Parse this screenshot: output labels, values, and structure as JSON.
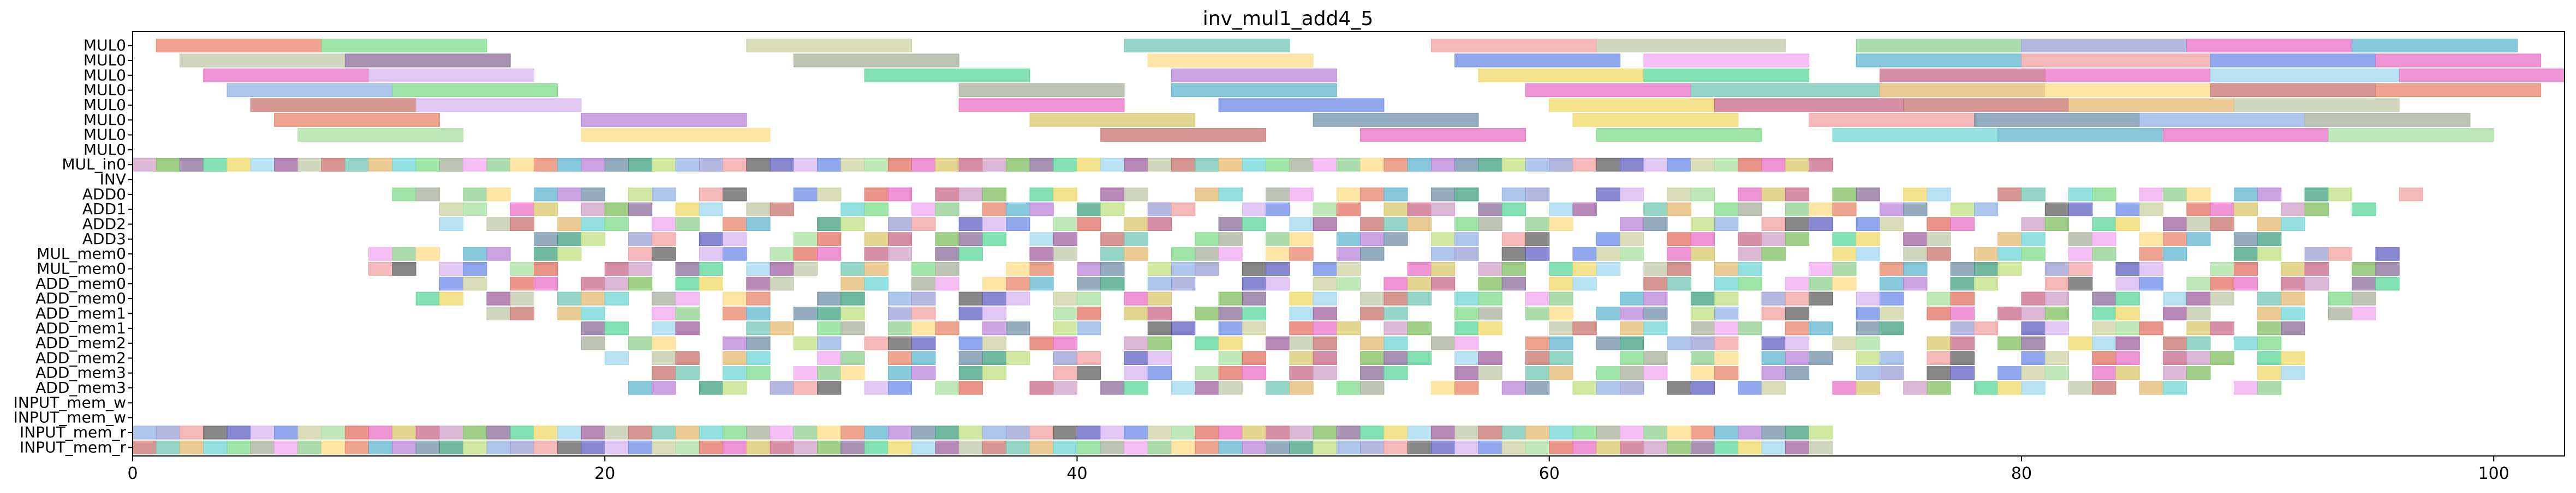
{
  "chart_data": {
    "type": "gantt",
    "title": "inv_mul1_add4_5",
    "xlabel": "",
    "ylabel": "",
    "xlim": [
      0,
      103
    ],
    "xticks": [
      0,
      20,
      40,
      60,
      80,
      100
    ],
    "rows": [
      "MUL0",
      "MUL0",
      "MUL0",
      "MUL0",
      "MUL0",
      "MUL0",
      "MUL0",
      "MUL0",
      "MUL_in0",
      "INV",
      "ADD0",
      "ADD1",
      "ADD2",
      "ADD3",
      "MUL_mem0",
      "MUL_mem0",
      "ADD_mem0",
      "ADD_mem0",
      "ADD_mem1",
      "ADD_mem1",
      "ADD_mem2",
      "ADD_mem2",
      "ADD_mem3",
      "ADD_mem3",
      "INPUT_mem_w",
      "INPUT_mem_w",
      "INPUT_mem_r",
      "INPUT_mem_r"
    ],
    "palette": [
      "#e8866a",
      "#7fdc8a",
      "#c2c9a8",
      "#8b6e9b",
      "#e86fc4",
      "#d7b5f0",
      "#94b3e6",
      "#5fb6d1",
      "#a7b09a",
      "#c8746e",
      "#5ad699",
      "#d8c86b",
      "#6c8be8",
      "#9b9fd6",
      "#b983d8",
      "#f0a8f0",
      "#72c7b2",
      "#f0d966",
      "#c96a8a",
      "#ccd2a0",
      "#f0a0a0",
      "#7090a8",
      "#90d090",
      "#e6b870",
      "#a0d8f0",
      "#d0a0c8",
      "#a8e0a0",
      "#606060",
      "#40a080",
      "#ffdd88",
      "#6fd6d6",
      "#a060a0",
      "#80c060",
      "#e07060",
      "#6060c0",
      "#c0e080"
    ],
    "bars": [
      {
        "row": 0,
        "s": 1,
        "e": 8,
        "c": 0
      },
      {
        "row": 0,
        "s": 8,
        "e": 15,
        "c": 1
      },
      {
        "row": 0,
        "s": 26,
        "e": 33,
        "c": 19
      },
      {
        "row": 0,
        "s": 42,
        "e": 49,
        "c": 16
      },
      {
        "row": 0,
        "s": 55,
        "e": 62,
        "c": 20
      },
      {
        "row": 0,
        "s": 62,
        "e": 70,
        "c": 2
      },
      {
        "row": 0,
        "s": 73,
        "e": 80,
        "c": 22
      },
      {
        "row": 0,
        "s": 80,
        "e": 87,
        "c": 13
      },
      {
        "row": 0,
        "s": 87,
        "e": 94,
        "c": 4
      },
      {
        "row": 0,
        "s": 94,
        "e": 101,
        "c": 7
      },
      {
        "row": 1,
        "s": 2,
        "e": 9,
        "c": 2
      },
      {
        "row": 1,
        "s": 9,
        "e": 16,
        "c": 3
      },
      {
        "row": 1,
        "s": 28,
        "e": 35,
        "c": 8
      },
      {
        "row": 1,
        "s": 43,
        "e": 50,
        "c": 29
      },
      {
        "row": 1,
        "s": 56,
        "e": 63,
        "c": 12
      },
      {
        "row": 1,
        "s": 64,
        "e": 71,
        "c": 15
      },
      {
        "row": 1,
        "s": 73,
        "e": 80,
        "c": 7
      },
      {
        "row": 1,
        "s": 80,
        "e": 88,
        "c": 20
      },
      {
        "row": 1,
        "s": 88,
        "e": 95,
        "c": 12
      },
      {
        "row": 1,
        "s": 95,
        "e": 102,
        "c": 4
      },
      {
        "row": 2,
        "s": 3,
        "e": 10,
        "c": 4
      },
      {
        "row": 2,
        "s": 10,
        "e": 17,
        "c": 5
      },
      {
        "row": 2,
        "s": 31,
        "e": 38,
        "c": 10
      },
      {
        "row": 2,
        "s": 44,
        "e": 51,
        "c": 14
      },
      {
        "row": 2,
        "s": 57,
        "e": 64,
        "c": 17
      },
      {
        "row": 2,
        "s": 64,
        "e": 71,
        "c": 10
      },
      {
        "row": 2,
        "s": 74,
        "e": 81,
        "c": 18
      },
      {
        "row": 2,
        "s": 81,
        "e": 88,
        "c": 4
      },
      {
        "row": 2,
        "s": 88,
        "e": 96,
        "c": 24
      },
      {
        "row": 2,
        "s": 96,
        "e": 103,
        "c": 4
      },
      {
        "row": 3,
        "s": 4,
        "e": 11,
        "c": 6
      },
      {
        "row": 3,
        "s": 11,
        "e": 18,
        "c": 1
      },
      {
        "row": 3,
        "s": 35,
        "e": 42,
        "c": 8
      },
      {
        "row": 3,
        "s": 44,
        "e": 51,
        "c": 7
      },
      {
        "row": 3,
        "s": 59,
        "e": 66,
        "c": 4
      },
      {
        "row": 3,
        "s": 66,
        "e": 74,
        "c": 16
      },
      {
        "row": 3,
        "s": 74,
        "e": 81,
        "c": 23
      },
      {
        "row": 3,
        "s": 81,
        "e": 88,
        "c": 29
      },
      {
        "row": 3,
        "s": 88,
        "e": 95,
        "c": 9
      },
      {
        "row": 3,
        "s": 95,
        "e": 102,
        "c": 0
      },
      {
        "row": 4,
        "s": 5,
        "e": 12,
        "c": 9
      },
      {
        "row": 4,
        "s": 12,
        "e": 19,
        "c": 5
      },
      {
        "row": 4,
        "s": 35,
        "e": 42,
        "c": 4
      },
      {
        "row": 4,
        "s": 46,
        "e": 53,
        "c": 12
      },
      {
        "row": 4,
        "s": 60,
        "e": 67,
        "c": 17
      },
      {
        "row": 4,
        "s": 67,
        "e": 75,
        "c": 18
      },
      {
        "row": 4,
        "s": 75,
        "e": 82,
        "c": 9
      },
      {
        "row": 4,
        "s": 82,
        "e": 89,
        "c": 23
      },
      {
        "row": 4,
        "s": 89,
        "e": 96,
        "c": 2
      },
      {
        "row": 5,
        "s": 6,
        "e": 13,
        "c": 0
      },
      {
        "row": 5,
        "s": 19,
        "e": 26,
        "c": 14
      },
      {
        "row": 5,
        "s": 38,
        "e": 45,
        "c": 11
      },
      {
        "row": 5,
        "s": 50,
        "e": 57,
        "c": 21
      },
      {
        "row": 5,
        "s": 61,
        "e": 68,
        "c": 17
      },
      {
        "row": 5,
        "s": 71,
        "e": 78,
        "c": 20
      },
      {
        "row": 5,
        "s": 78,
        "e": 85,
        "c": 21
      },
      {
        "row": 5,
        "s": 85,
        "e": 92,
        "c": 6
      },
      {
        "row": 5,
        "s": 92,
        "e": 99,
        "c": 8
      },
      {
        "row": 6,
        "s": 7,
        "e": 14,
        "c": 26
      },
      {
        "row": 6,
        "s": 19,
        "e": 27,
        "c": 29
      },
      {
        "row": 6,
        "s": 41,
        "e": 48,
        "c": 9
      },
      {
        "row": 6,
        "s": 52,
        "e": 59,
        "c": 4
      },
      {
        "row": 6,
        "s": 62,
        "e": 69,
        "c": 1
      },
      {
        "row": 6,
        "s": 72,
        "e": 79,
        "c": 30
      },
      {
        "row": 6,
        "s": 79,
        "e": 86,
        "c": 7
      },
      {
        "row": 6,
        "s": 86,
        "e": 93,
        "c": 4
      },
      {
        "row": 6,
        "s": 93,
        "e": 100,
        "c": 26
      }
    ],
    "dense": [
      {
        "row": 8,
        "s": 0,
        "e": 72,
        "g": 1,
        "step": 1
      },
      {
        "row": 10,
        "s": 11,
        "e": 97,
        "g": 2,
        "step": 1
      },
      {
        "row": 11,
        "s": 12,
        "e": 95,
        "g": 3,
        "step": 1
      },
      {
        "row": 12,
        "s": 13,
        "e": 93,
        "g": 5,
        "step": 1
      },
      {
        "row": 13,
        "s": 16,
        "e": 91,
        "g": 7,
        "step": 1
      },
      {
        "row": 14,
        "s": 10,
        "e": 96,
        "g": 11,
        "step": 1
      },
      {
        "row": 15,
        "s": 10,
        "e": 96,
        "g": 13,
        "step": 1
      },
      {
        "row": 16,
        "s": 12,
        "e": 96,
        "g": 17,
        "step": 1
      },
      {
        "row": 17,
        "s": 12,
        "e": 96,
        "g": 19,
        "step": 1
      },
      {
        "row": 18,
        "s": 15,
        "e": 95,
        "g": 23,
        "step": 1
      },
      {
        "row": 19,
        "s": 18,
        "e": 94,
        "g": 29,
        "step": 1
      },
      {
        "row": 20,
        "s": 19,
        "e": 93,
        "g": 31,
        "step": 1
      },
      {
        "row": 21,
        "s": 20,
        "e": 92,
        "g": 37,
        "step": 1
      },
      {
        "row": 22,
        "s": 20,
        "e": 92,
        "g": 41,
        "step": 1
      },
      {
        "row": 23,
        "s": 21,
        "e": 91,
        "g": 43,
        "step": 1
      },
      {
        "row": 26,
        "s": 0,
        "e": 72,
        "g": 0,
        "step": 1
      },
      {
        "row": 27,
        "s": 0,
        "e": 72,
        "g": 0,
        "step": 1
      }
    ]
  }
}
